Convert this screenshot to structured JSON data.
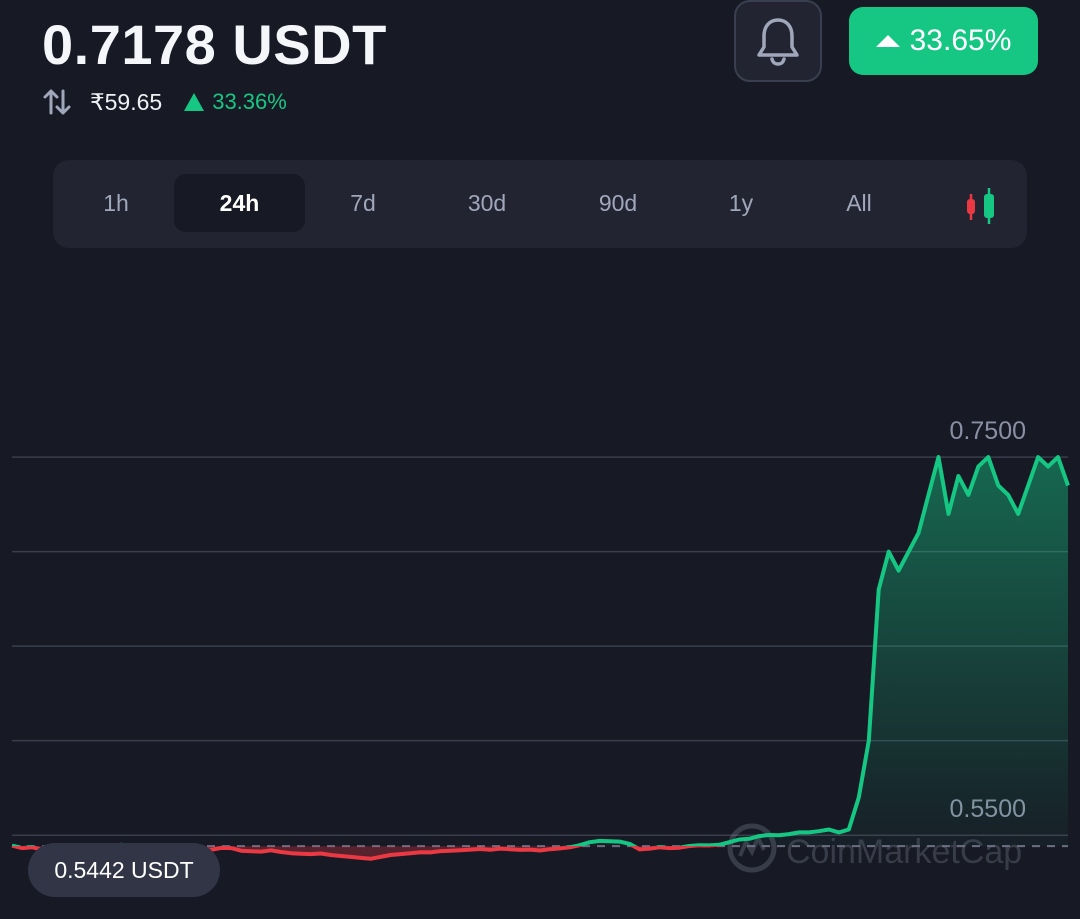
{
  "header": {
    "price": "0.7178 USDT",
    "fiat_price": "₹59.65",
    "fiat_change": "33.36%",
    "change_badge": "33.65%"
  },
  "timeframes": [
    {
      "label": "1h",
      "active": false
    },
    {
      "label": "24h",
      "active": true
    },
    {
      "label": "7d",
      "active": false
    },
    {
      "label": "30d",
      "active": false
    },
    {
      "label": "90d",
      "active": false
    },
    {
      "label": "1y",
      "active": false
    },
    {
      "label": "All",
      "active": false
    }
  ],
  "icons": {
    "swap": "swap-vertical-icon",
    "alert": "bell-icon",
    "chart_type": "candlestick-icon",
    "watermark": "coinmarketcap-logo-icon"
  },
  "colors": {
    "up": "#16c784",
    "down": "#ea3943",
    "background": "#171924",
    "panel": "#222531"
  },
  "chart_data": {
    "type": "line",
    "ylim": [
      0.5263,
      0.7961
    ],
    "y_ticks": [
      "0.7500",
      "0.5500"
    ],
    "baseline": 0.5442,
    "low_label": "0.5442 USDT",
    "watermark": "CoinMarketCap",
    "x": [
      0,
      1,
      2,
      3,
      4,
      5,
      6,
      7,
      8,
      9,
      10,
      11,
      12,
      13,
      14,
      15,
      16,
      17,
      18,
      19,
      20,
      21,
      22,
      23,
      24,
      25,
      26,
      27,
      28,
      29,
      30,
      31,
      32,
      33,
      34,
      35,
      36,
      37,
      38,
      39,
      40,
      41,
      42,
      43,
      44,
      45,
      46,
      47,
      48,
      49,
      50,
      51,
      52,
      53,
      54,
      55,
      56,
      57,
      58,
      59,
      60,
      61,
      62,
      63,
      64,
      65,
      66,
      67,
      68,
      69,
      70,
      71,
      72,
      73,
      74,
      75,
      76,
      77,
      78,
      79,
      80,
      81,
      82,
      83,
      84,
      85,
      86,
      87,
      88,
      89,
      90,
      91,
      92,
      93,
      94,
      95,
      96,
      97,
      98,
      99,
      100,
      101,
      102,
      103,
      104,
      105,
      106
    ],
    "values": [
      0.5445,
      0.5432,
      0.5436,
      0.5425,
      0.5432,
      0.5431,
      0.5438,
      0.5442,
      0.5441,
      0.5436,
      0.5442,
      0.545,
      0.5428,
      0.542,
      0.5428,
      0.5432,
      0.5428,
      0.5424,
      0.542,
      0.5424,
      0.5423,
      0.5433,
      0.5432,
      0.5418,
      0.5415,
      0.5413,
      0.542,
      0.5411,
      0.5405,
      0.5402,
      0.54,
      0.5403,
      0.5395,
      0.539,
      0.5385,
      0.538,
      0.5375,
      0.5385,
      0.5395,
      0.54,
      0.5404,
      0.541,
      0.5409,
      0.5416,
      0.5418,
      0.542,
      0.5424,
      0.5427,
      0.5423,
      0.5429,
      0.5426,
      0.5422,
      0.5424,
      0.5419,
      0.5426,
      0.543,
      0.5436,
      0.5447,
      0.5463,
      0.547,
      0.5468,
      0.5466,
      0.5454,
      0.5425,
      0.5429,
      0.5436,
      0.5432,
      0.5434,
      0.5443,
      0.5447,
      0.5446,
      0.5449,
      0.5463,
      0.5477,
      0.5481,
      0.5495,
      0.5501,
      0.55,
      0.5506,
      0.5515,
      0.5515,
      0.5521,
      0.553,
      0.5515,
      0.553,
      0.57,
      0.6,
      0.68,
      0.7,
      0.69,
      0.7,
      0.71,
      0.73,
      0.75,
      0.72,
      0.74,
      0.73,
      0.745,
      0.75,
      0.735,
      0.73,
      0.72,
      0.735,
      0.75,
      0.745,
      0.75,
      0.735
    ]
  }
}
